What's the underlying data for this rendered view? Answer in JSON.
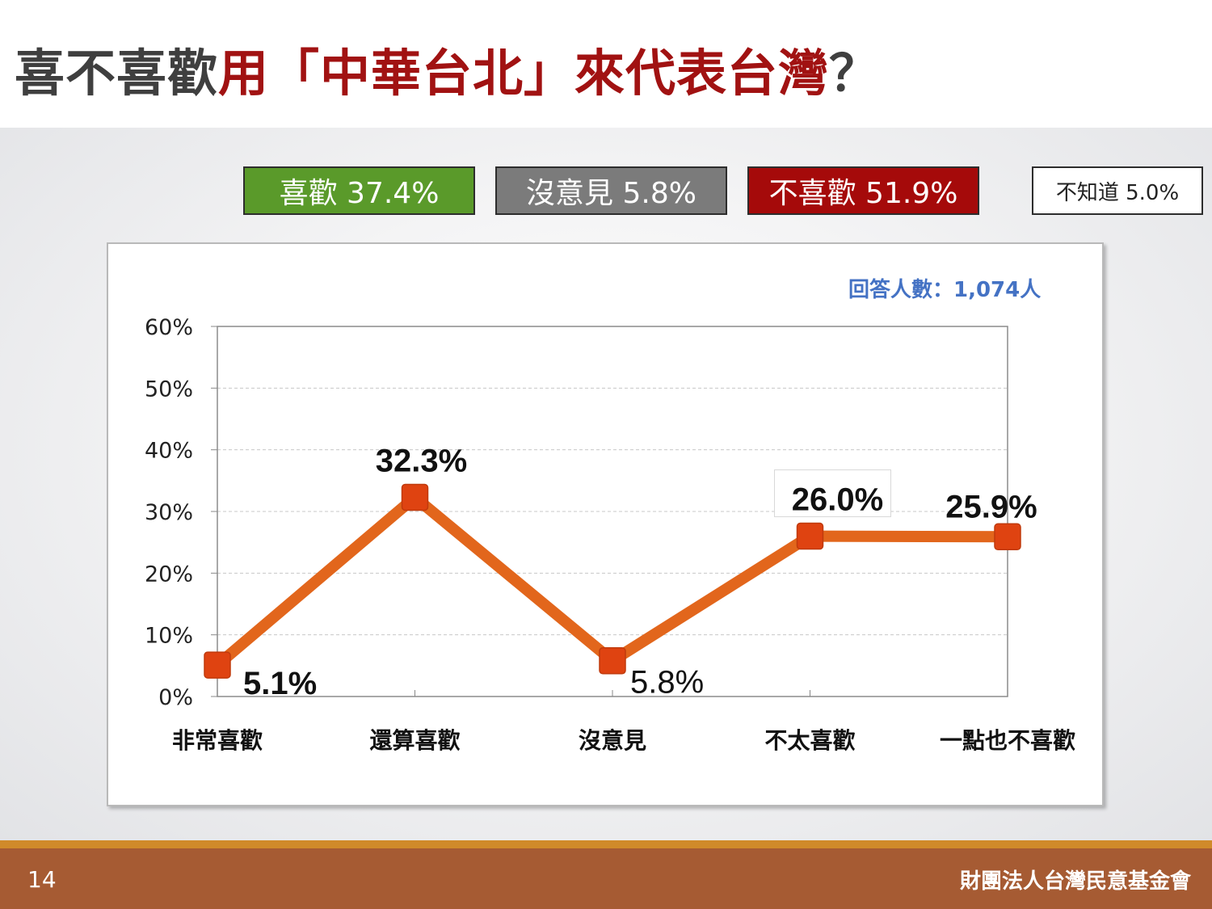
{
  "title": {
    "part1": "喜不喜歡",
    "part2": "用「中華台北」來代表台灣",
    "part3": "？"
  },
  "summary": {
    "like": "喜歡 37.4%",
    "neutral": "沒意見 5.8%",
    "dislike": "不喜歡 51.9%",
    "unknown": "不知道 5.0%"
  },
  "respondents": "回答人數：1,074人",
  "colors": {
    "like": "#5a9a2a",
    "neutral": "#7b7b7b",
    "dislike": "#a50a0a",
    "line": "#e2661c",
    "marker": "#df4311",
    "respondents": "#4472c4",
    "footer": "#a65b33"
  },
  "chart_data": {
    "type": "line",
    "categories": [
      "非常喜歡",
      "還算喜歡",
      "沒意見",
      "不太喜歡",
      "一點也不喜歡"
    ],
    "values": [
      5.1,
      32.3,
      5.8,
      26.0,
      25.9
    ],
    "data_labels": [
      "5.1%",
      "32.3%",
      "5.8%",
      "26.0%",
      "25.9%"
    ],
    "y_ticks": [
      "0%",
      "10%",
      "20%",
      "30%",
      "40%",
      "50%",
      "60%"
    ],
    "ylim": [
      0,
      60
    ],
    "grid": true,
    "legend": "none"
  },
  "footer": {
    "page_number": "14",
    "organization": "財團法人台灣民意基金會"
  }
}
